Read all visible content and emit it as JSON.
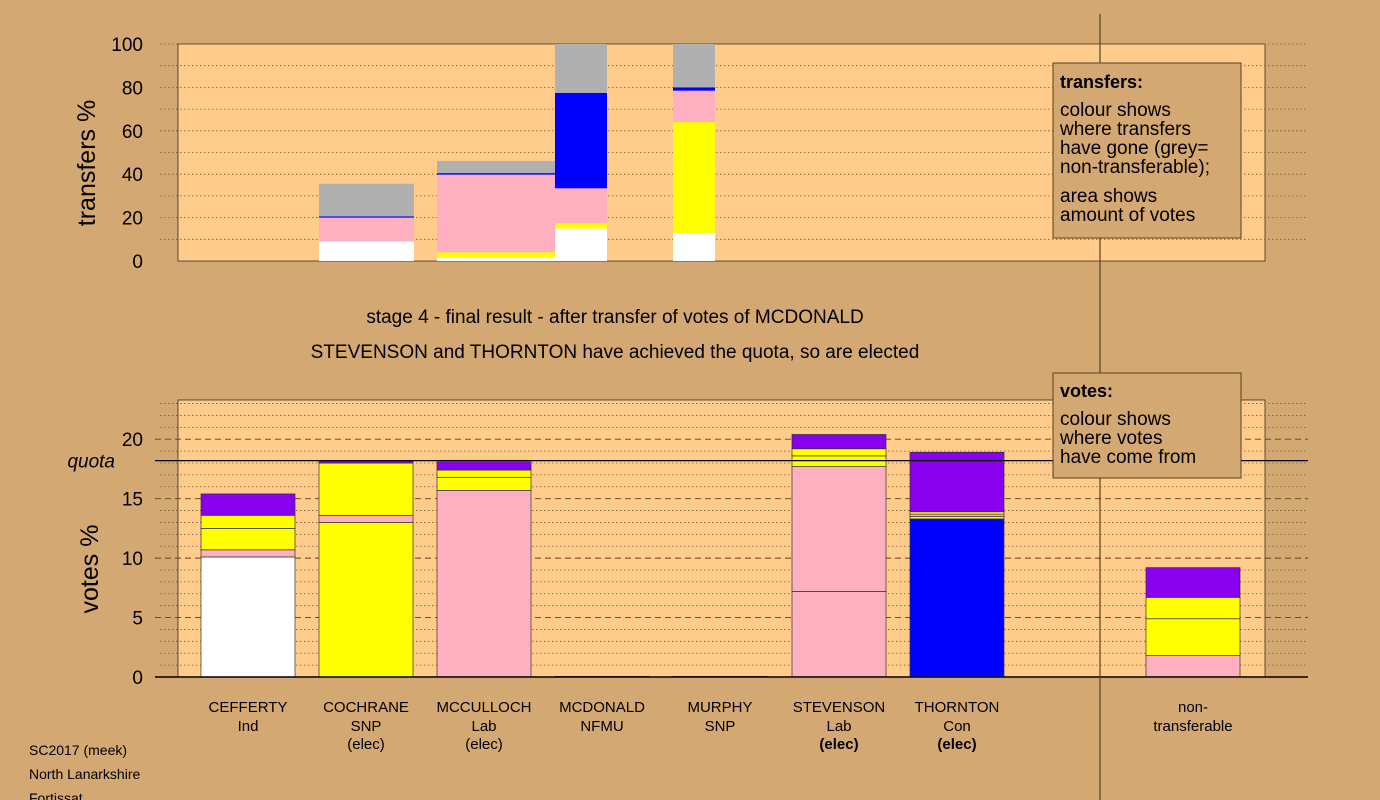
{
  "chart_data": [
    {
      "type": "bar",
      "stacked": true,
      "ylabel": "transfers %",
      "ylim": [
        0,
        100
      ],
      "yticks": [
        0,
        20,
        40,
        60,
        80,
        100
      ],
      "grid": true,
      "legend": {
        "position": "top-right",
        "title": "transfers:",
        "lines": [
          "colour shows",
          "where transfers",
          "have gone (grey=",
          "non-transferable);",
          "area shows",
          "amount of votes"
        ]
      },
      "bars": [
        {
          "candidate": "COCHRANE",
          "segments": [
            {
              "color": "#ffffff",
              "value": 9
            },
            {
              "color": "#ffb0c0",
              "value": 11
            },
            {
              "color": "#0000ff",
              "value": 0.6
            },
            {
              "color": "#b0b0b0",
              "value": 15
            }
          ]
        },
        {
          "candidate": "MCCULLOCH",
          "segments": [
            {
              "color": "#ffffff",
              "value": 1.5
            },
            {
              "color": "#ffff00",
              "value": 2.5
            },
            {
              "color": "#ffb0c0",
              "value": 35.8
            },
            {
              "color": "#0000ff",
              "value": 0.7
            },
            {
              "color": "#b0b0b0",
              "value": 5.6
            }
          ]
        },
        {
          "candidate": "MCDONALD",
          "segments": [
            {
              "color": "#ffffff",
              "value": 15
            },
            {
              "color": "#ffff00",
              "value": 2.5
            },
            {
              "color": "#ffb0c0",
              "value": 16
            },
            {
              "color": "#0000ff",
              "value": 44
            },
            {
              "color": "#b0b0b0",
              "value": 22.5
            }
          ]
        },
        {
          "candidate": "MURPHY",
          "segments": [
            {
              "color": "#ffffff",
              "value": 13
            },
            {
              "color": "#ffff00",
              "value": 51
            },
            {
              "color": "#ffb0c0",
              "value": 14.5
            },
            {
              "color": "#0000ff",
              "value": 1.5
            },
            {
              "color": "#b0b0b0",
              "value": 20
            }
          ]
        }
      ]
    },
    {
      "type": "bar",
      "stacked": true,
      "ylabel": "votes %",
      "ylim": [
        0,
        23.3
      ],
      "yticks": [
        0,
        5,
        10,
        15,
        20
      ],
      "quota": 18.2,
      "quota_label": "quota",
      "grid": true,
      "legend": {
        "position": "top-right",
        "title": "votes:",
        "lines": [
          "colour shows",
          "where votes",
          "have come from"
        ]
      },
      "categories": [
        {
          "name": "CEFFERTY",
          "party": "Ind",
          "status": "",
          "status_bold": false
        },
        {
          "name": "COCHRANE",
          "party": "SNP",
          "status": "(elec)",
          "status_bold": false
        },
        {
          "name": "MCCULLOCH",
          "party": "Lab",
          "status": "(elec)",
          "status_bold": false
        },
        {
          "name": "MCDONALD",
          "party": "NFMU",
          "status": "",
          "status_bold": false
        },
        {
          "name": "MURPHY",
          "party": "SNP",
          "status": "",
          "status_bold": false
        },
        {
          "name": "STEVENSON",
          "party": "Lab",
          "status": "(elec)",
          "status_bold": true
        },
        {
          "name": "THORNTON",
          "party": "Con",
          "status": "(elec)",
          "status_bold": true
        },
        {
          "name": "non-",
          "party": "transferable",
          "status": "",
          "status_bold": false
        }
      ],
      "bars": [
        {
          "segments": [
            {
              "color": "#ffffff",
              "value": 10.1
            },
            {
              "color": "#ffb0c0",
              "value": 0.6
            },
            {
              "color": "#ffff00",
              "value": 1.8
            },
            {
              "color": "#ffff00",
              "value": 1.1
            },
            {
              "color": "#8800ee",
              "value": 1.8
            }
          ]
        },
        {
          "segments": [
            {
              "color": "#ffff00",
              "value": 13.0
            },
            {
              "color": "#ffb0c0",
              "value": 0.6
            },
            {
              "color": "#ffff00",
              "value": 4.4
            },
            {
              "color": "#8800ee",
              "value": 0.2
            }
          ]
        },
        {
          "segments": [
            {
              "color": "#ffb0c0",
              "value": 15.7
            },
            {
              "color": "#ffff00",
              "value": 1.1
            },
            {
              "color": "#ffff00",
              "value": 0.6
            },
            {
              "color": "#8800ee",
              "value": 0.7
            }
          ]
        },
        {
          "segments": [
            {
              "color": "#8800ee",
              "value": 0.05
            }
          ]
        },
        {
          "segments": [
            {
              "color": "#ffff00",
              "value": 0.05
            }
          ]
        },
        {
          "segments": [
            {
              "color": "#ffb0c0",
              "value": 7.2
            },
            {
              "color": "#ffb0c0",
              "value": 10.5
            },
            {
              "color": "#ffff00",
              "value": 0.9
            },
            {
              "color": "#ffff00",
              "value": 0.6
            },
            {
              "color": "#8800ee",
              "value": 1.2
            }
          ]
        },
        {
          "segments": [
            {
              "color": "#0000ff",
              "value": 13.3
            },
            {
              "color": "#ffff00",
              "value": 0.2
            },
            {
              "color": "#ffb0c0",
              "value": 0.2
            },
            {
              "color": "#ffff00",
              "value": 0.2
            },
            {
              "color": "#8800ee",
              "value": 5.0
            }
          ]
        },
        {
          "segments": [
            {
              "color": "#ffb0c0",
              "value": 1.8
            },
            {
              "color": "#ffff00",
              "value": 3.1
            },
            {
              "color": "#ffff00",
              "value": 1.8
            },
            {
              "color": "#8800ee",
              "value": 2.5
            }
          ]
        }
      ]
    }
  ],
  "stage_title": "stage 4 - final result - after transfer of votes of MCDONALD",
  "stage_subtitle": "STEVENSON and THORNTON have achieved the quota, so are elected",
  "footer": [
    "SC2017 (meek)",
    "North Lanarkshire",
    "Fortissat"
  ],
  "colors": {
    "background": "#d4a872",
    "plot_area": "#ffcc8c",
    "ind": "#ffffff",
    "snp": "#ffff00",
    "lab": "#ffb0c0",
    "con": "#0000ff",
    "nfmu": "#8800ee",
    "non_transferable": "#b0b0b0"
  }
}
